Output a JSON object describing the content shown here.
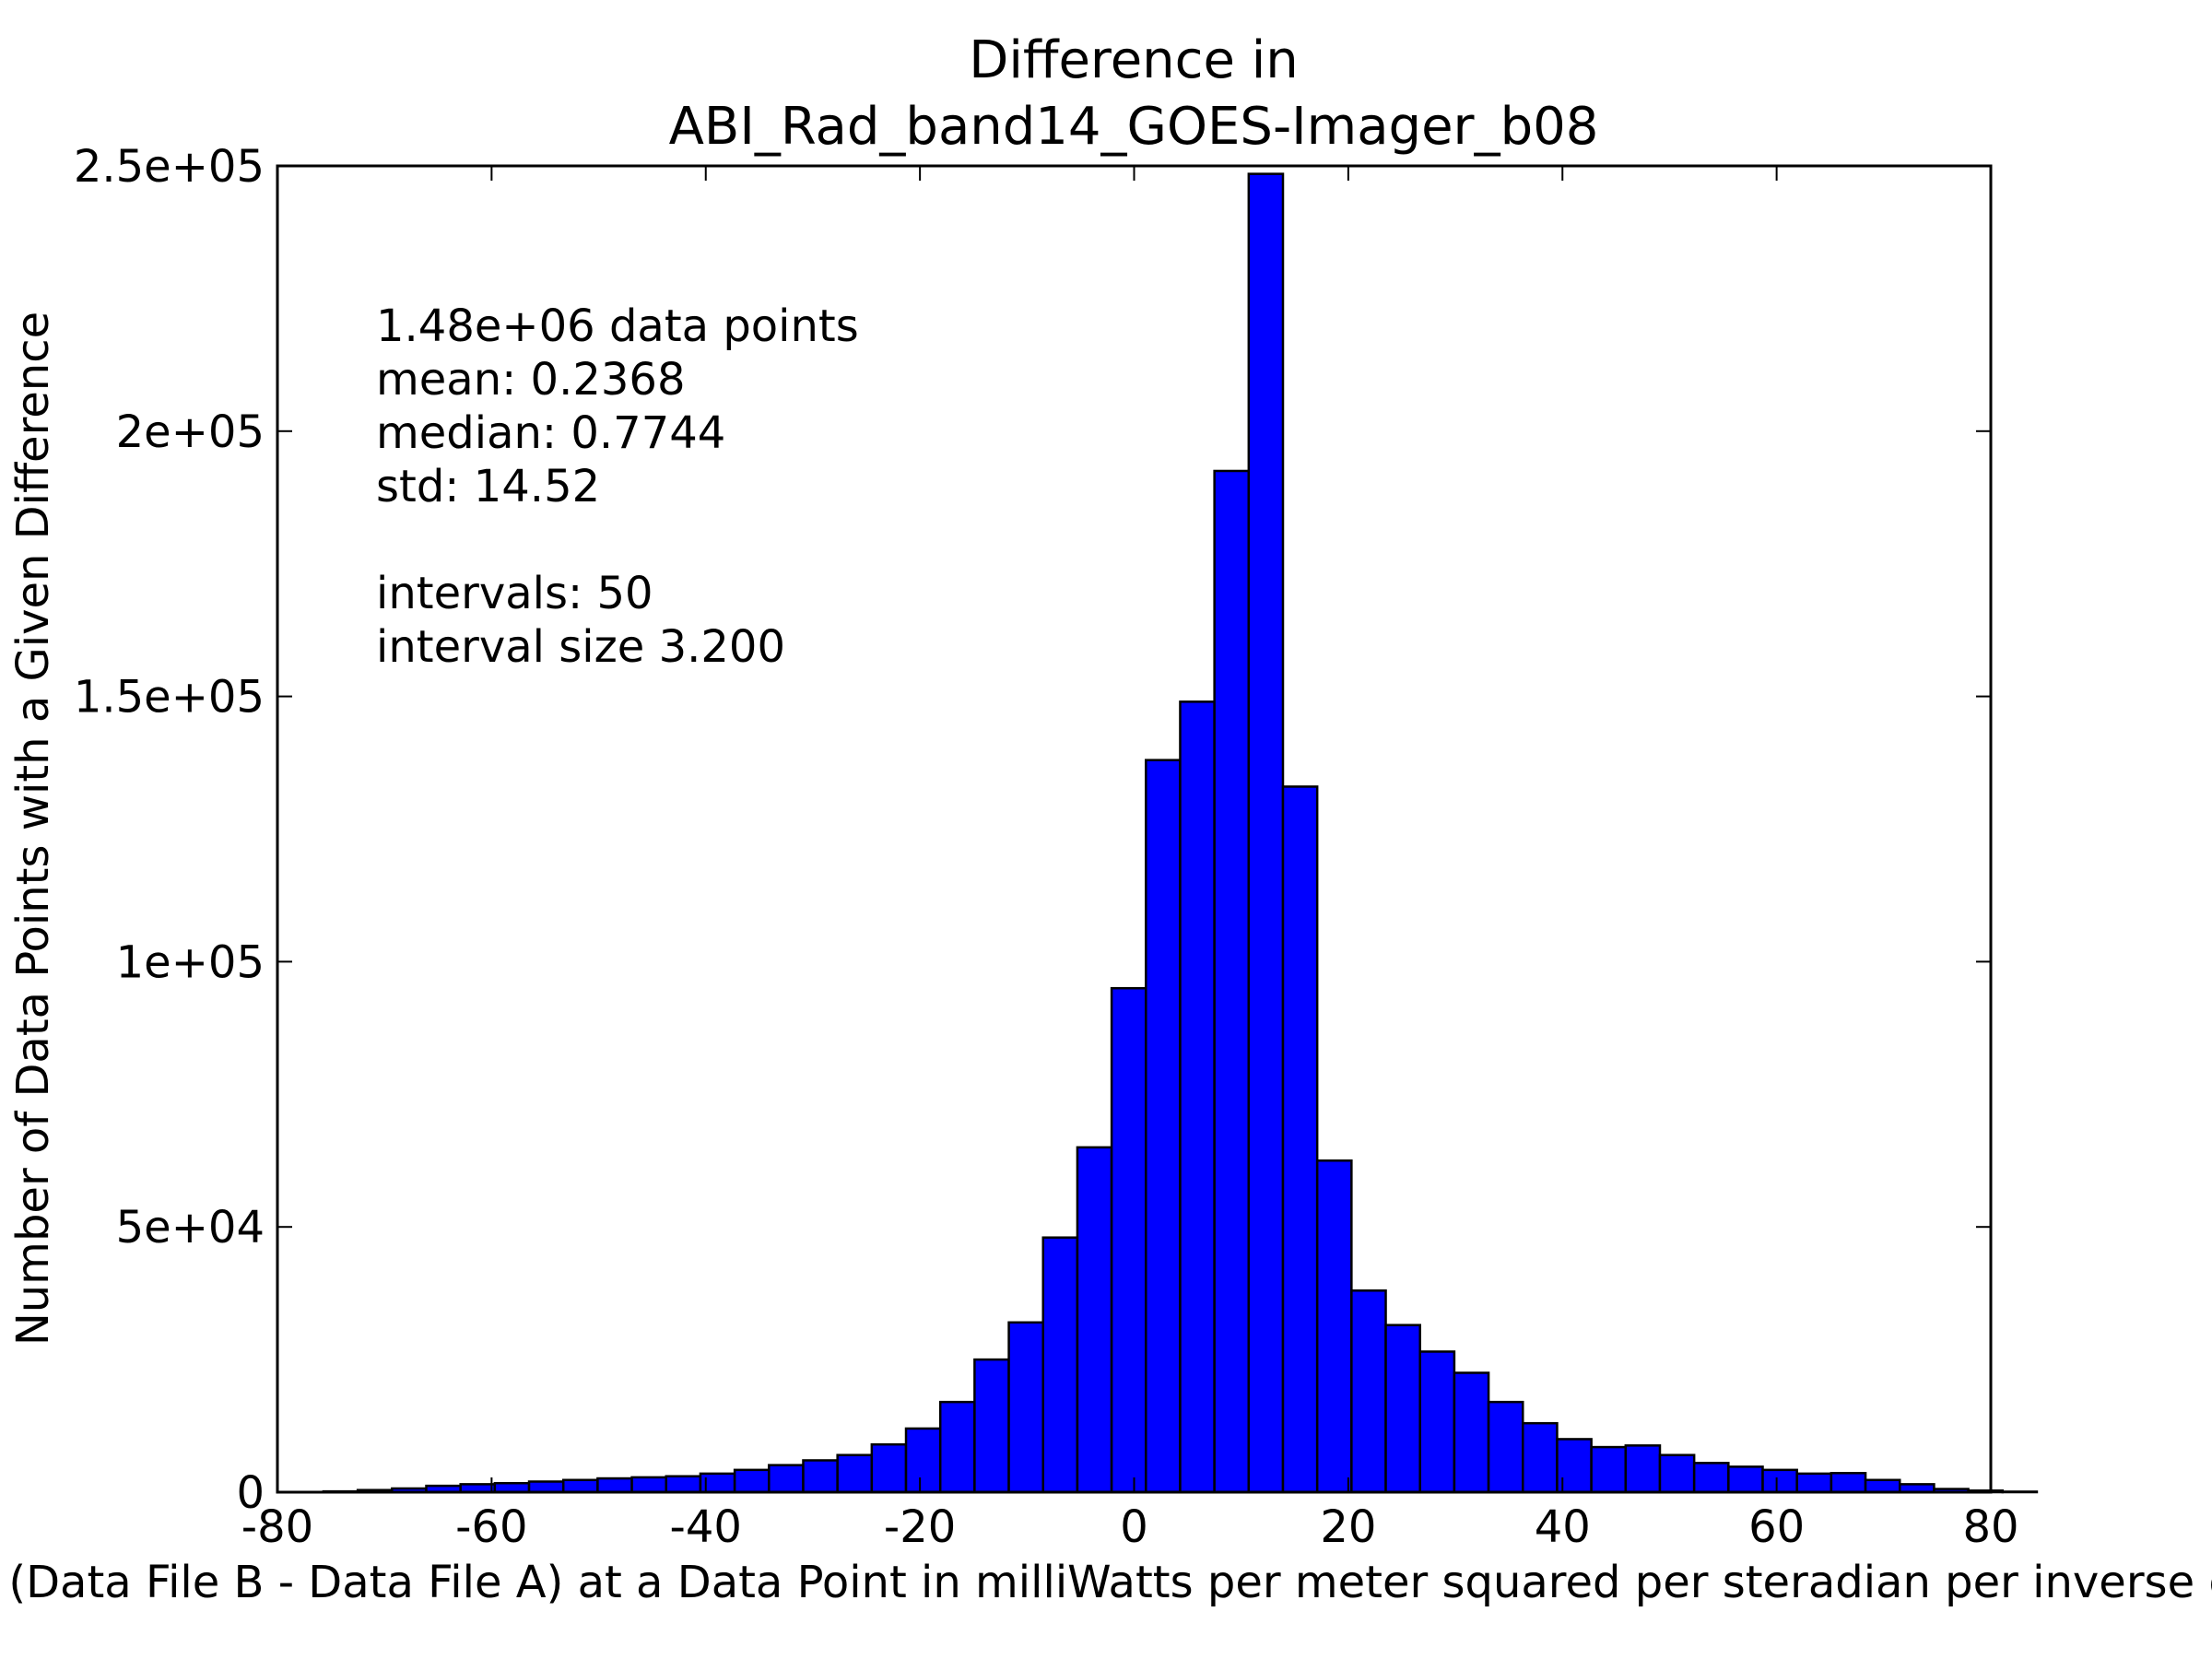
{
  "chart_data": {
    "type": "bar",
    "title": [
      "Difference in",
      "ABI_Rad_band14_GOES-Imager_b08"
    ],
    "xlabel": "Value of (Data File B - Data File A) at a Data Point in milliWatts per meter squared per steradian per inverse centimeter",
    "ylabel": "Number of Data Points with a Given Difference",
    "xlim": [
      -80,
      80
    ],
    "ylim": [
      0,
      250000
    ],
    "xticks": [
      -80,
      -60,
      -40,
      -20,
      0,
      20,
      40,
      60,
      80
    ],
    "xtick_labels": [
      "-80",
      "-60",
      "-40",
      "-20",
      "0",
      "20",
      "40",
      "60",
      "80"
    ],
    "yticks": [
      0,
      50000,
      100000,
      150000,
      200000,
      250000
    ],
    "ytick_labels": [
      "0",
      "5e+04",
      "1e+05",
      "1.5e+05",
      "2e+05",
      "2.5e+05"
    ],
    "bin_start": -75.7,
    "bin_width": 3.2,
    "values": [
      150,
      400,
      700,
      1200,
      1500,
      1700,
      2000,
      2300,
      2600,
      2800,
      3000,
      3500,
      4200,
      5100,
      6000,
      7000,
      9000,
      12000,
      17000,
      25000,
      32000,
      48000,
      65000,
      95000,
      138000,
      149000,
      192500,
      248500,
      133000,
      62500,
      38000,
      31500,
      26500,
      22500,
      17000,
      13000,
      10000,
      8500,
      8800,
      7000,
      5500,
      4800,
      4200,
      3500,
      3600,
      2300,
      1500,
      600,
      300,
      100
    ],
    "bar_color": "#0000ff",
    "edge_color": "#000000",
    "grid": false,
    "annotation": [
      "1.48e+06 data points",
      "mean: 0.2368",
      "median: 0.7744",
      "std: 14.52",
      "",
      "intervals: 50",
      "interval size 3.200"
    ]
  }
}
